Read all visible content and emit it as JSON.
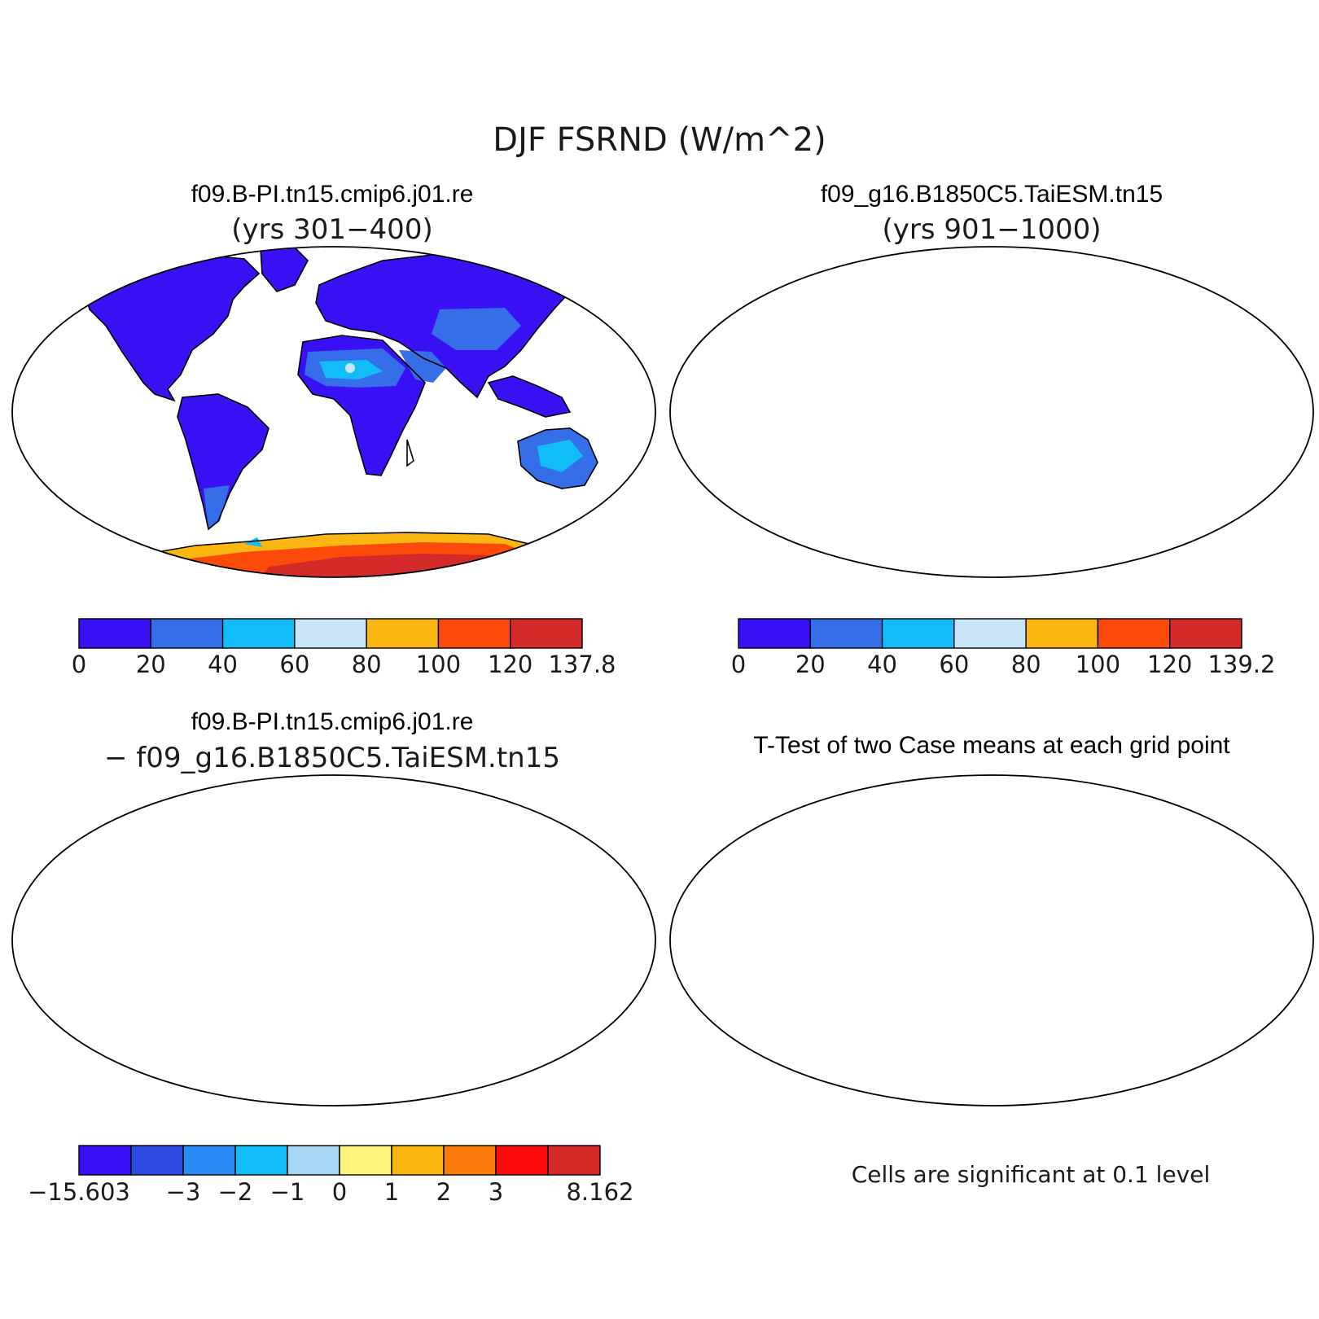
{
  "figure": {
    "title": "DJF FSRND (W/m^2)"
  },
  "panels": [
    {
      "id": "case1",
      "title_line1": "f09.B-PI.tn15.cmip6.j01.re",
      "title_line2": "(yrs 301−400)",
      "colorbar": {
        "labels": [
          "0",
          "20",
          "40",
          "60",
          "80",
          "100",
          "120",
          "137.8"
        ],
        "colors": [
          "#3a10f5",
          "#356ee8",
          "#12bcf8",
          "#c8e6f7",
          "#fbb612",
          "#fb4a0a",
          "#d52a2a"
        ]
      }
    },
    {
      "id": "case2",
      "title_line1": "f09_g16.B1850C5.TaiESM.tn15",
      "title_line2": "(yrs 901−1000)",
      "colorbar": {
        "labels": [
          "0",
          "20",
          "40",
          "60",
          "80",
          "100",
          "120",
          "139.2"
        ],
        "colors": [
          "#3a10f5",
          "#356ee8",
          "#12bcf8",
          "#c8e6f7",
          "#fbb612",
          "#fb4a0a",
          "#d52a2a"
        ]
      }
    },
    {
      "id": "difference",
      "title_line1": "f09.B-PI.tn15.cmip6.j01.re",
      "title_line2": "− f09_g16.B1850C5.TaiESM.tn15",
      "colorbar": {
        "labels": [
          "−15.603",
          "−3",
          "−2",
          "−1",
          "0",
          "1",
          "2",
          "3",
          "8.162"
        ],
        "colors": [
          "#3a10f5",
          "#2c4de0",
          "#2a8af5",
          "#12bcf8",
          "#a7d6f2",
          "#fff47a",
          "#fbb612",
          "#fb7c0a",
          "#fc0c0c",
          "#d52a2a"
        ]
      }
    },
    {
      "id": "ttest",
      "title_line1": "T-Test of two Case means at each grid point",
      "note": "Cells are significant at 0.1 level",
      "signif_color": "#f50c0c"
    }
  ]
}
